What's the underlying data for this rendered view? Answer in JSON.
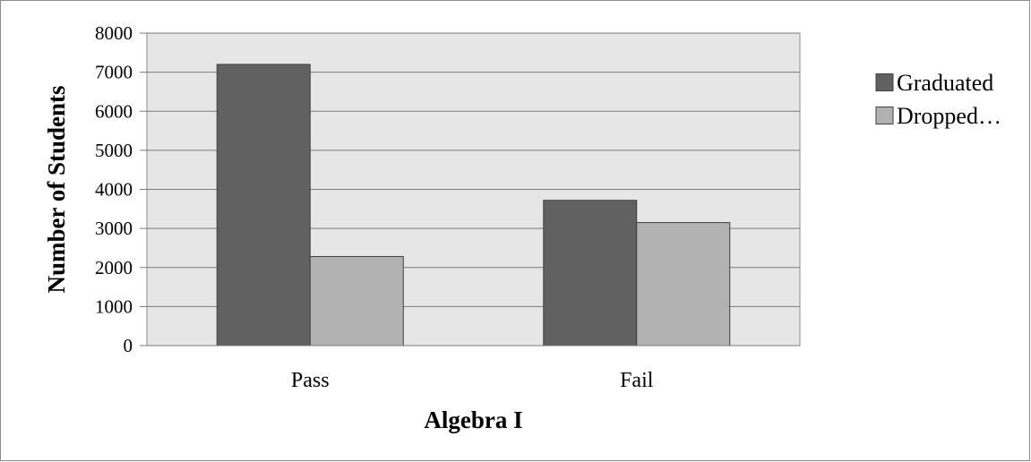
{
  "chart_data": {
    "type": "bar",
    "categories": [
      "Pass",
      "Fail"
    ],
    "series": [
      {
        "name": "Graduated",
        "values": [
          7200,
          3720
        ],
        "color": "#616161"
      },
      {
        "name": "Dropped…",
        "values": [
          2280,
          3150
        ],
        "color": "#b2b2b2"
      }
    ],
    "xlabel": "Algebra I",
    "ylabel": "Number of Students",
    "ylim": [
      0,
      8000
    ],
    "yticks": [
      "0",
      "1000",
      "2000",
      "3000",
      "4000",
      "5000",
      "6000",
      "7000",
      "8000"
    ],
    "grid": true,
    "legend": "right",
    "plot_background": "#e6e6e6"
  }
}
